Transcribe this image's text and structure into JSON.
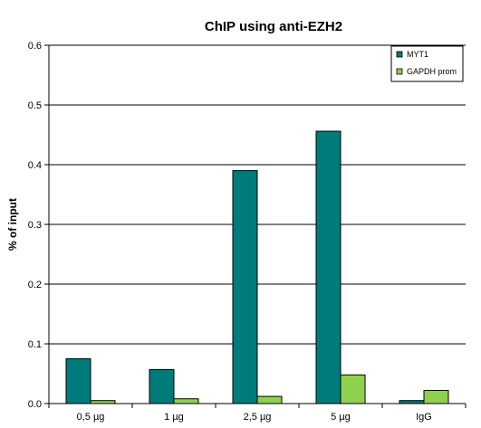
{
  "chart_data": {
    "type": "bar",
    "title": "ChIP using anti-EZH2",
    "xlabel": "",
    "ylabel": "% of input",
    "categories": [
      "0,5 µg",
      "1 µg",
      "2,5 µg",
      "5 µg",
      "IgG"
    ],
    "series": [
      {
        "name": "MYT1",
        "color": "#007b7b",
        "values": [
          0.075,
          0.057,
          0.39,
          0.456,
          0.005
        ]
      },
      {
        "name": "GAPDH prom",
        "color": "#8fd14f",
        "values": [
          0.005,
          0.008,
          0.012,
          0.048,
          0.022
        ]
      }
    ],
    "ylim": [
      0,
      0.6
    ],
    "yticks": [
      "0.0",
      "0.1",
      "0.2",
      "0.3",
      "0.4",
      "0.5",
      "0.6"
    ],
    "grid": true,
    "legend": "top-right"
  }
}
